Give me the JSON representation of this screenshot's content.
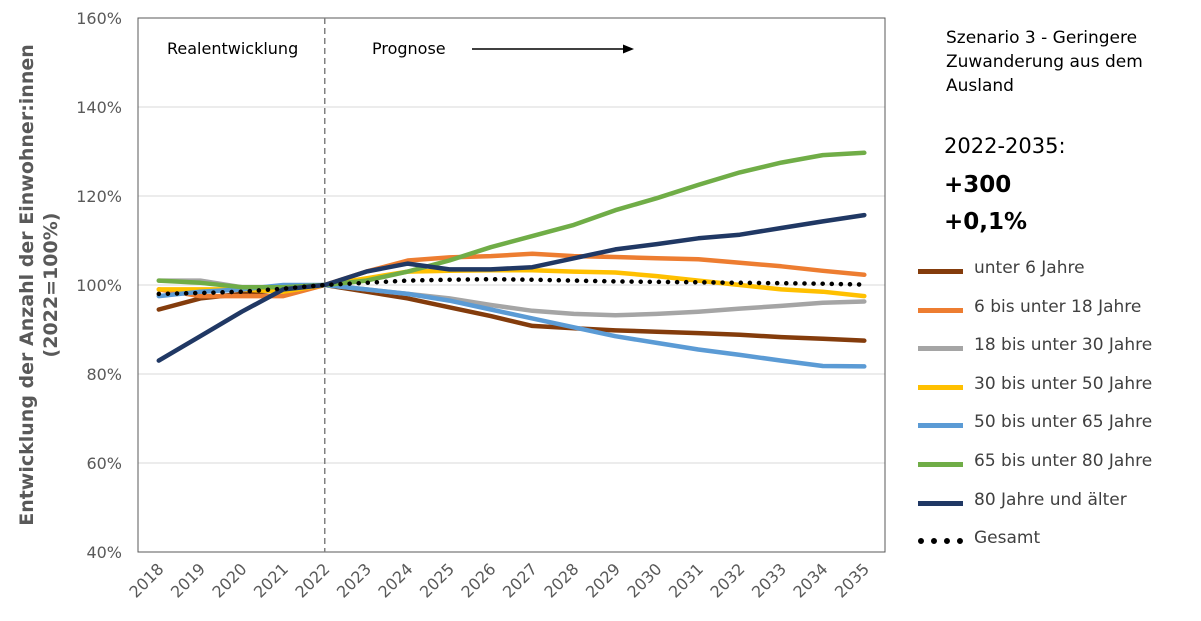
{
  "info": {
    "scenario": "Szenario 3 - Geringere Zuwanderung aus dem Ausland",
    "period": "2022-2035:",
    "abs_change": "+300",
    "pct_change": "+0,1%"
  },
  "chart_data": {
    "type": "line",
    "title": "",
    "xlabel": "",
    "ylabel": "Entwicklung der Anzahl der Einwohner:innen (2022=100%)",
    "ylim": [
      40,
      160
    ],
    "y_ticks": [
      "40%",
      "60%",
      "80%",
      "100%",
      "120%",
      "140%",
      "160%"
    ],
    "grid": true,
    "legend_position": "right",
    "categories": [
      "2018",
      "2019",
      "2020",
      "2021",
      "2022",
      "2023",
      "2024",
      "2025",
      "2026",
      "2027",
      "2028",
      "2029",
      "2030",
      "2031",
      "2032",
      "2033",
      "2034",
      "2035"
    ],
    "annotations": {
      "left": "Realentwicklung",
      "right": "Prognose",
      "divider_at": "2022"
    },
    "series": [
      {
        "name": "unter 6 Jahre",
        "color": "#843C0C",
        "style": "solid",
        "values": [
          94.5,
          97.0,
          98.0,
          99.0,
          100.0,
          98.5,
          97.0,
          95.0,
          93.0,
          90.8,
          90.3,
          89.8,
          89.5,
          89.2,
          88.8,
          88.3,
          87.9,
          87.5
        ]
      },
      {
        "name": "6 bis unter 18 Jahre",
        "color": "#ED7D31",
        "style": "solid",
        "values": [
          99.0,
          97.5,
          97.5,
          97.5,
          100.0,
          103.0,
          105.5,
          106.2,
          106.5,
          107.0,
          106.5,
          106.3,
          106.0,
          105.8,
          105.0,
          104.2,
          103.2,
          102.3
        ]
      },
      {
        "name": "18 bis unter 30 Jahre",
        "color": "#A5A5A5",
        "style": "solid",
        "values": [
          101.0,
          101.0,
          99.5,
          99.5,
          100.0,
          99.0,
          98.0,
          97.0,
          95.5,
          94.2,
          93.5,
          93.2,
          93.5,
          94.0,
          94.7,
          95.3,
          96.0,
          96.3
        ]
      },
      {
        "name": "30 bis unter 50 Jahre",
        "color": "#FFC000",
        "style": "solid",
        "values": [
          99.0,
          99.0,
          99.0,
          98.5,
          100.0,
          101.5,
          103.0,
          103.2,
          103.3,
          103.3,
          103.0,
          102.8,
          102.0,
          101.0,
          100.0,
          99.0,
          98.5,
          97.5
        ]
      },
      {
        "name": "50 bis unter 65 Jahre",
        "color": "#5B9BD5",
        "style": "solid",
        "values": [
          97.5,
          98.5,
          99.0,
          100.0,
          100.0,
          99.0,
          98.0,
          96.5,
          94.5,
          92.5,
          90.5,
          88.5,
          87.0,
          85.5,
          84.3,
          83.0,
          81.8,
          81.7
        ]
      },
      {
        "name": "65 bis unter 80 Jahre",
        "color": "#70AD47",
        "style": "solid",
        "values": [
          101.0,
          100.5,
          99.5,
          99.5,
          100.0,
          101.0,
          103.0,
          105.5,
          108.5,
          111.0,
          113.5,
          116.8,
          119.5,
          122.5,
          125.3,
          127.5,
          129.2,
          129.7
        ]
      },
      {
        "name": "80 Jahre und älter",
        "color": "#203864",
        "style": "solid",
        "values": [
          83.0,
          88.5,
          94.0,
          99.0,
          100.0,
          103.0,
          104.8,
          103.5,
          103.5,
          104.0,
          106.0,
          108.0,
          109.2,
          110.5,
          111.3,
          112.8,
          114.3,
          115.7
        ]
      },
      {
        "name": "Gesamt",
        "color": "#000000",
        "style": "dotted",
        "values": [
          98.0,
          98.2,
          98.5,
          99.2,
          100.0,
          100.5,
          101.0,
          101.2,
          101.3,
          101.2,
          101.0,
          100.8,
          100.7,
          100.6,
          100.5,
          100.4,
          100.3,
          100.1
        ]
      }
    ]
  }
}
